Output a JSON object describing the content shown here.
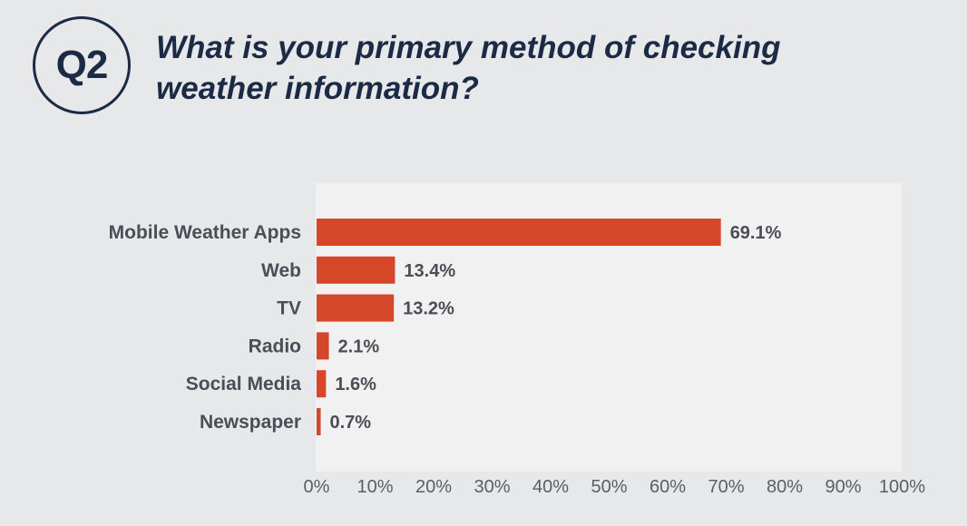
{
  "header": {
    "badge": "Q2",
    "question": "What is your primary method of checking weather information?"
  },
  "chart_data": {
    "type": "bar",
    "orientation": "horizontal",
    "title": "What is your primary method of checking weather information?",
    "categories": [
      "Mobile Weather Apps",
      "Web",
      "TV",
      "Radio",
      "Social Media",
      "Newspaper"
    ],
    "values": [
      69.1,
      13.4,
      13.2,
      2.1,
      1.6,
      0.7
    ],
    "value_labels": [
      "69.1%",
      "13.4%",
      "13.2%",
      "2.1%",
      "1.6%",
      "0.7%"
    ],
    "xlim": [
      0,
      100
    ],
    "ticks": [
      0,
      10,
      20,
      30,
      40,
      50,
      60,
      70,
      80,
      90,
      100
    ],
    "tick_labels": [
      "0%",
      "10%",
      "20%",
      "30%",
      "40%",
      "50%",
      "60%",
      "70%",
      "80%",
      "90%",
      "100%"
    ],
    "bar_color": "#d64629",
    "plot_background": "#f1f1f2",
    "grid": false
  }
}
